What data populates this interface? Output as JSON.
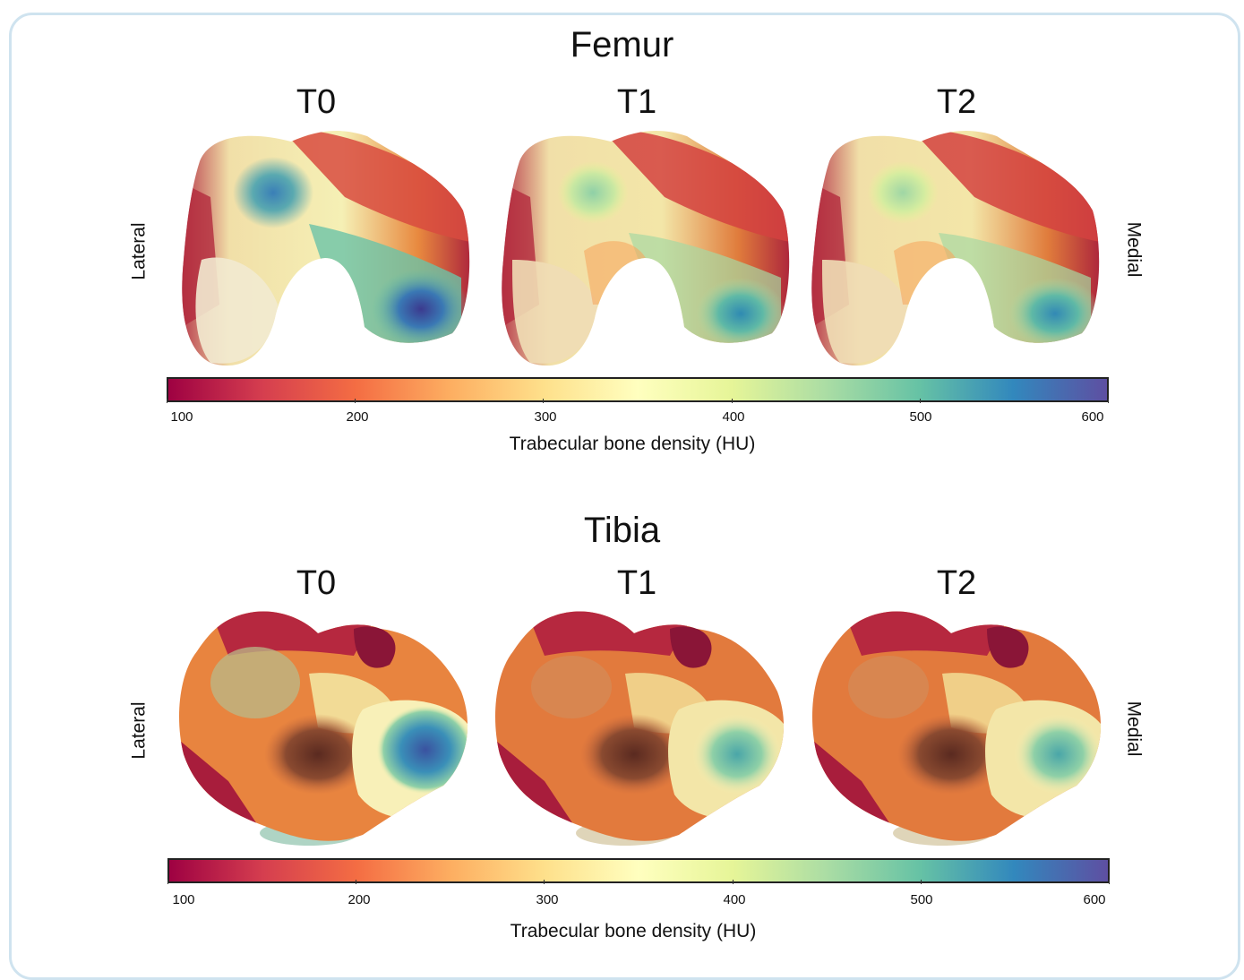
{
  "panels": [
    {
      "key": "femur",
      "title": "Femur",
      "columns": [
        "T0",
        "T1",
        "T2"
      ],
      "left_label": "Lateral",
      "right_label": "Medial",
      "colorbar": {
        "ticks": [
          "100",
          "200",
          "300",
          "400",
          "500",
          "600"
        ],
        "title": "Trabecular bone density (HU)"
      }
    },
    {
      "key": "tibia",
      "title": "Tibia",
      "columns": [
        "T0",
        "T1",
        "T2"
      ],
      "left_label": "Lateral",
      "right_label": "Medial",
      "colorbar": {
        "ticks": [
          "100",
          "200",
          "300",
          "400",
          "500",
          "600"
        ],
        "title": "Trabecular bone density (HU)"
      }
    }
  ],
  "colormap": {
    "name": "Spectral",
    "range": [
      100,
      600
    ],
    "stops": [
      "#9e0142",
      "#d53e4f",
      "#f46d43",
      "#fdae61",
      "#fee08b",
      "#ffffbf",
      "#e6f598",
      "#abdda4",
      "#66c2a5",
      "#3288bd",
      "#5e4fa2"
    ]
  }
}
